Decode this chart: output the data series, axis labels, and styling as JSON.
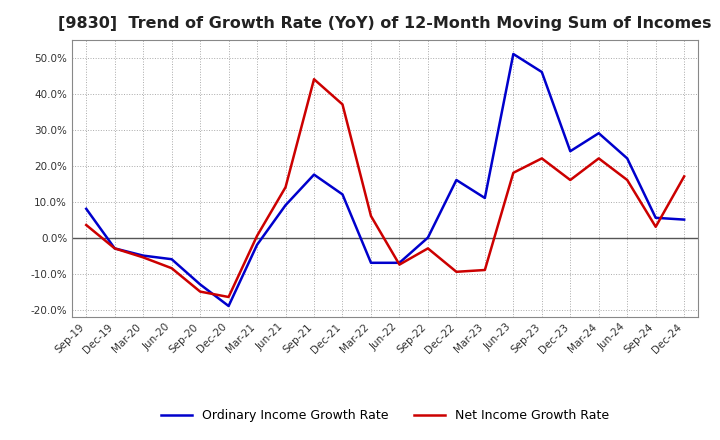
{
  "title": "[9830]  Trend of Growth Rate (YoY) of 12-Month Moving Sum of Incomes",
  "title_fontsize": 11.5,
  "legend_labels": [
    "Ordinary Income Growth Rate",
    "Net Income Growth Rate"
  ],
  "legend_colors": [
    "#0000cc",
    "#cc0000"
  ],
  "x_labels": [
    "Sep-19",
    "Dec-19",
    "Mar-20",
    "Jun-20",
    "Sep-20",
    "Dec-20",
    "Mar-21",
    "Jun-21",
    "Sep-21",
    "Dec-21",
    "Mar-22",
    "Jun-22",
    "Sep-22",
    "Dec-22",
    "Mar-23",
    "Jun-23",
    "Sep-23",
    "Dec-23",
    "Mar-24",
    "Jun-24",
    "Sep-24",
    "Dec-24"
  ],
  "ordinary_income": [
    8.0,
    -3.0,
    -5.0,
    -6.0,
    -13.0,
    -19.0,
    -2.0,
    9.0,
    17.5,
    12.0,
    -7.0,
    -7.0,
    0.0,
    16.0,
    11.0,
    51.0,
    46.0,
    24.0,
    29.0,
    22.0,
    5.5,
    5.0
  ],
  "net_income": [
    3.5,
    -3.0,
    -5.5,
    -8.5,
    -15.0,
    -16.5,
    0.5,
    14.0,
    44.0,
    37.0,
    6.0,
    -7.5,
    -3.0,
    -9.5,
    -9.0,
    18.0,
    22.0,
    16.0,
    22.0,
    16.0,
    3.0,
    17.0
  ],
  "ylim": [
    -22,
    55
  ],
  "yticks": [
    -20.0,
    -10.0,
    0.0,
    10.0,
    20.0,
    30.0,
    40.0,
    50.0
  ],
  "background_color": "#ffffff",
  "grid_color": "#aaaaaa",
  "plot_bg_color": "#ffffff",
  "zero_line_color": "#555555"
}
